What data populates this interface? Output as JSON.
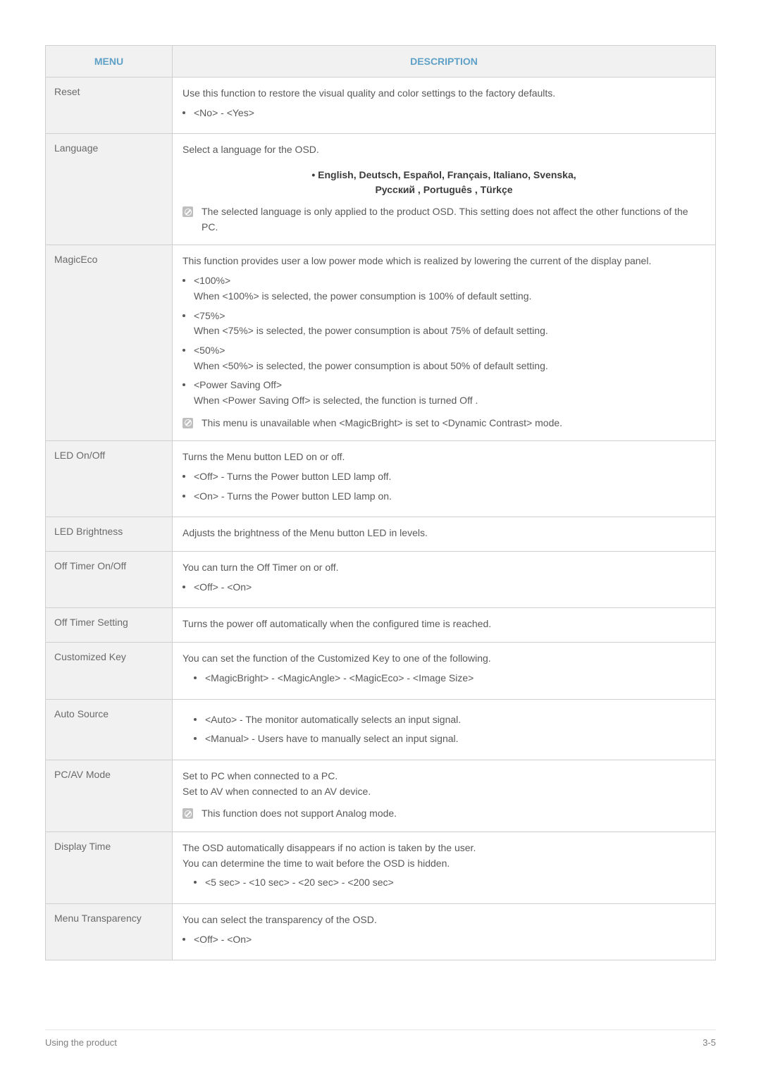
{
  "colors": {
    "page_bg": "#ffffff",
    "header_bg": "#f1f1f1",
    "menu_cell_bg": "#f1f1f1",
    "border": "#cfcfcf",
    "header_text": "#5fa0c7",
    "body_text": "#595959",
    "menu_text": "#6a6a6a",
    "lang_bold_text": "#3b3b3b",
    "note_icon_bg": "#bfbfbf",
    "footer_text": "#808080",
    "footer_rule": "#e6e6e6"
  },
  "typography": {
    "body_font_size_pt": 10.5,
    "header_font_size_pt": 10.5,
    "footer_font_size_pt": 10
  },
  "header": {
    "menu": "MENU",
    "description": "DESCRIPTION"
  },
  "rows": {
    "reset": {
      "menu": "Reset",
      "intro": "Use this function to restore the visual quality and color settings to the factory defaults.",
      "bullets": [
        "<No> - <Yes>"
      ]
    },
    "language": {
      "menu": "Language",
      "intro": "Select a language for the OSD.",
      "lang_line1": "• English, Deutsch, Español, Français,  Italiano, Svenska,",
      "lang_line2": "Русский , Português , Türkçe",
      "note": "The selected language is only applied to the product OSD. This setting does not affect the other functions of the PC."
    },
    "magiceco": {
      "menu": "MagicEco",
      "intro": "This function provides user a low power mode which is realized by lowering the current of the display panel.",
      "bullets": [
        {
          "head": "<100%>",
          "body": "When <100%> is selected, the power consumption is 100% of default setting."
        },
        {
          "head": "<75%>",
          "body": "When <75%> is selected, the power consumption is about 75% of default setting."
        },
        {
          "head": "<50%>",
          "body": "When <50%> is selected, the power consumption is about 50% of default setting."
        },
        {
          "head": "<Power Saving Off>",
          "body": "When <Power Saving Off> is selected, the function is turned Off ."
        }
      ],
      "note": "This menu is unavailable when <MagicBright> is set to <Dynamic Contrast> mode."
    },
    "led_onoff": {
      "menu": "LED On/Off",
      "intro": "Turns the Menu button LED on or off.",
      "bullets": [
        "<Off> - Turns the Power button LED lamp off.",
        "<On> - Turns the Power button LED lamp on."
      ]
    },
    "led_brightness": {
      "menu": "LED Brightness",
      "body": "Adjusts the brightness of the Menu button LED in levels."
    },
    "off_timer_onoff": {
      "menu": "Off Timer On/Off",
      "intro": "You can turn the Off Timer on or off.",
      "bullets": [
        "<Off> - <On>"
      ]
    },
    "off_timer_setting": {
      "menu": "Off Timer Setting",
      "body": "Turns the power off automatically when the configured time is reached."
    },
    "customized_key": {
      "menu": "Customized Key",
      "intro": "You can set the function of the Customized Key to one of the following.",
      "bullets": [
        "<MagicBright> - <MagicAngle> - <MagicEco> - <Image Size>"
      ]
    },
    "auto_source": {
      "menu": "Auto Source",
      "bullets": [
        "<Auto> - The monitor automatically selects an input signal.",
        "<Manual> - Users have to manually select an input signal."
      ]
    },
    "pcav_mode": {
      "menu": "PC/AV Mode",
      "line1": "Set to PC when connected to a PC.",
      "line2": "Set to AV when connected to an AV device.",
      "note": "This function does not support Analog mode."
    },
    "display_time": {
      "menu": "Display Time",
      "line1": "The OSD automatically disappears if no action is taken by the user.",
      "line2": "You can determine the time to wait before the OSD is hidden.",
      "bullets": [
        "<5 sec> - <10 sec> - <20 sec> - <200 sec>"
      ]
    },
    "menu_transparency": {
      "menu": "Menu Transparency",
      "intro": "You can select the transparency of the OSD.",
      "bullets": [
        "<Off> - <On>"
      ]
    }
  },
  "footer": {
    "left": "Using the product",
    "right": "3-5"
  }
}
